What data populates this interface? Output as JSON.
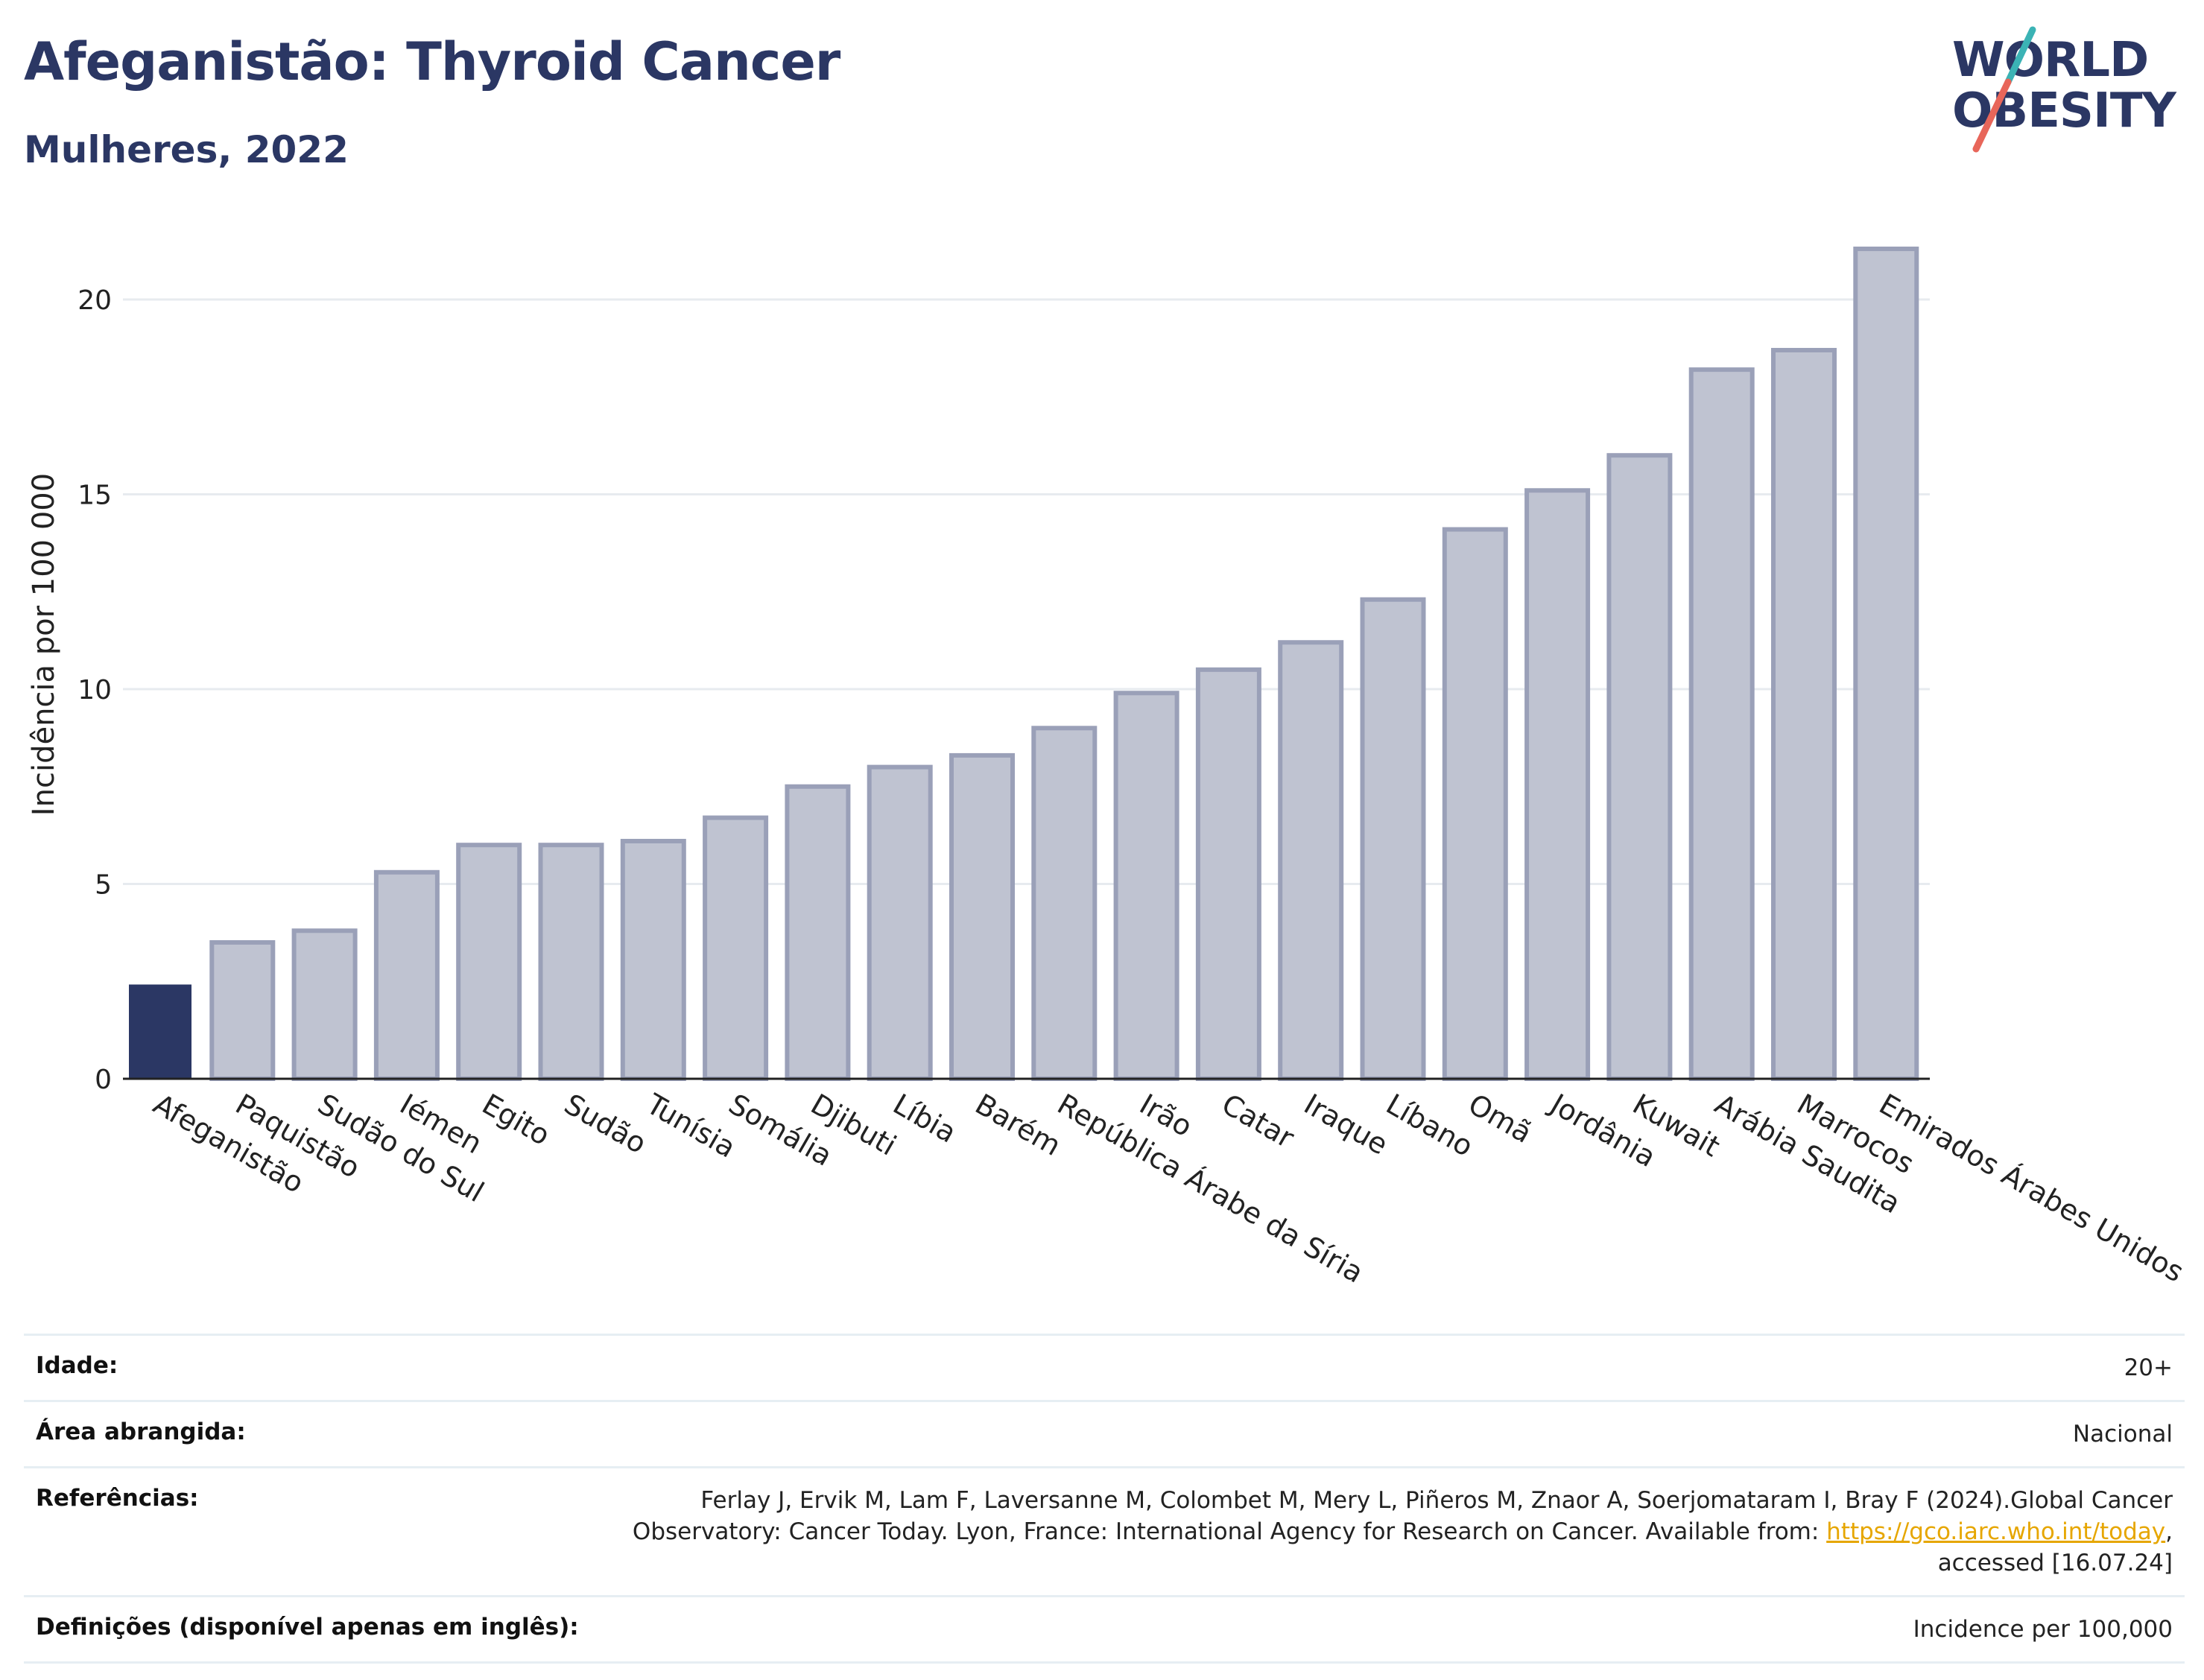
{
  "header": {
    "title": "Afeganistão: Thyroid Cancer",
    "subtitle": "Mulheres, 2022"
  },
  "logo": {
    "line1": "WORLD",
    "line2": "OBESITY",
    "colors": {
      "text": "#2b3764",
      "slash_teal": "#3bb3b5",
      "slash_red": "#e8665a"
    }
  },
  "chart_data": {
    "type": "bar",
    "title": "Afeganistão: Thyroid Cancer",
    "subtitle": "Mulheres, 2022",
    "xlabel": "",
    "ylabel": "Incidência por 100 000",
    "ylim": [
      0,
      22
    ],
    "yticks": [
      0,
      5,
      10,
      15,
      20
    ],
    "grid": true,
    "highlight_category": "Afeganistão",
    "colors": {
      "highlight": "#2b3764",
      "default_fill": "#bfc3d1",
      "default_stroke": "#9aa0b8"
    },
    "categories": [
      "Afeganistão",
      "Paquistão",
      "Sudão do Sul",
      "Iémen",
      "Egito",
      "Sudão",
      "Tunísia",
      "Somália",
      "Djibuti",
      "Líbia",
      "Barém",
      "República Árabe da Síria",
      "Irão",
      "Catar",
      "Iraque",
      "Líbano",
      "Omã",
      "Jordânia",
      "Kuwait",
      "Arábia Saudita",
      "Marrocos",
      "Emirados Árabes Unidos"
    ],
    "values": [
      2.4,
      3.5,
      3.8,
      5.3,
      6.0,
      6.0,
      6.1,
      6.7,
      7.5,
      8.0,
      8.3,
      9.0,
      9.9,
      10.5,
      11.2,
      12.3,
      14.1,
      15.1,
      16.0,
      18.2,
      18.7,
      21.3
    ]
  },
  "meta": {
    "age_label": "Idade:",
    "age_value": "20+",
    "area_label": "Área abrangida:",
    "area_value": "Nacional",
    "refs_label": "Referências:",
    "refs_text_1": "Ferlay J, Ervik M, Lam F, Laversanne M, Colombet M, Mery L, Piñeros M, Znaor A, Soerjomataram I, Bray F (2024).Global Cancer",
    "refs_text_2": "Observatory: Cancer Today. Lyon, France: International Agency for Research on Cancer. Available from: ",
    "refs_link": "https://gco.iarc.who.int/today",
    "refs_text_3": ",",
    "refs_text_4": "accessed [16.07.24]",
    "defs_label": "Definições (disponível apenas em inglês):",
    "defs_value": "Incidence per 100,000"
  }
}
